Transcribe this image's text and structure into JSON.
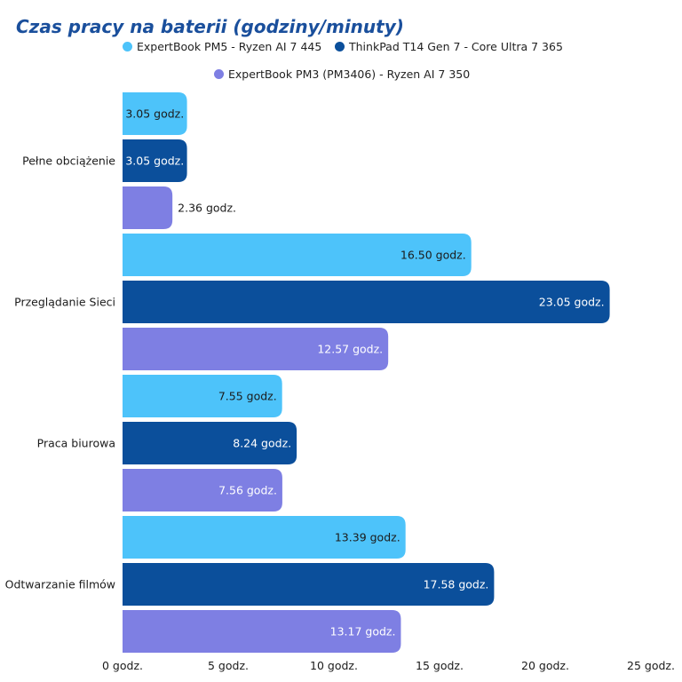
{
  "chart_data": {
    "type": "bar",
    "orientation": "horizontal",
    "title": "Czas pracy na baterii (godziny/minuty)",
    "categories": [
      "Pełne obciążenie",
      "Przeglądanie Sieci",
      "Praca biurowa",
      "Odtwarzanie filmów"
    ],
    "series": [
      {
        "name": "ExpertBook PM5 - Ryzen AI 7 445",
        "color": "#4dc3fa",
        "values": [
          3.05,
          16.5,
          7.55,
          13.39
        ],
        "labels": [
          "3.05 godz.",
          "16.50 godz.",
          "7.55 godz.",
          "13.39 godz."
        ]
      },
      {
        "name": "ThinkPad T14 Gen 7 - Core Ultra 7 365",
        "color": "#0b4f9b",
        "values": [
          3.05,
          23.05,
          8.24,
          17.58
        ],
        "labels": [
          "3.05 godz.",
          "23.05 godz.",
          "8.24 godz.",
          "17.58 godz."
        ]
      },
      {
        "name": "ExpertBook PM3 (PM3406) - Ryzen AI 7 350",
        "color": "#7e7fe3",
        "values": [
          2.36,
          12.57,
          7.56,
          13.17
        ],
        "labels": [
          "2.36 godz.",
          "12.57 godz.",
          "7.56 godz.",
          "13.17 godz."
        ]
      }
    ],
    "xlim": [
      0,
      25
    ],
    "xticks": [
      0,
      5,
      10,
      15,
      20,
      25
    ],
    "xtick_labels": [
      "0 godz.",
      "5 godz.",
      "10 godz.",
      "15 godz.",
      "20 godz.",
      "25 godz."
    ],
    "grid": false,
    "legend_position": "top"
  }
}
